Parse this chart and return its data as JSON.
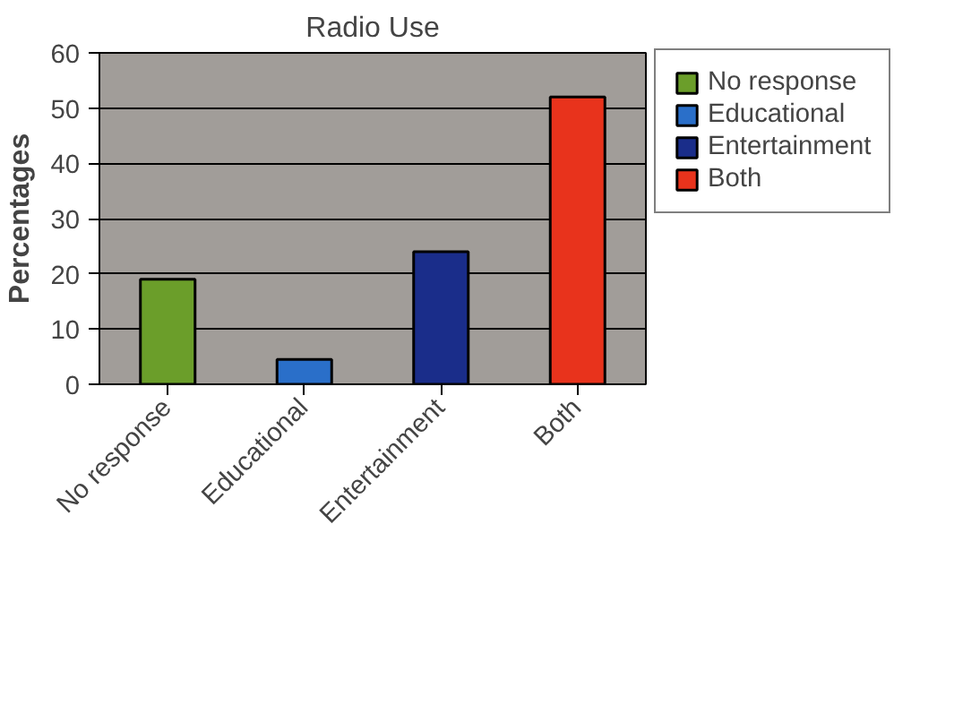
{
  "chart_data": {
    "type": "bar",
    "title": "Radio Use",
    "ylabel": "Percentages",
    "categories": [
      "No response",
      "Educational",
      "Entertainment",
      "Both"
    ],
    "series": [
      {
        "name": "No response",
        "color": "#6b9e2a",
        "values": [
          19,
          null,
          null,
          null
        ]
      },
      {
        "name": "Educational",
        "color": "#2a6fc9",
        "values": [
          null,
          4.5,
          null,
          null
        ]
      },
      {
        "name": "Entertainment",
        "color": "#1a2d8a",
        "values": [
          null,
          null,
          24,
          null
        ]
      },
      {
        "name": "Both",
        "color": "#e8331c",
        "values": [
          null,
          null,
          null,
          52
        ]
      }
    ],
    "ylim": [
      0,
      60
    ],
    "yticks": [
      0,
      10,
      20,
      30,
      40,
      50,
      60
    ],
    "grid": "y",
    "legend": "right"
  }
}
